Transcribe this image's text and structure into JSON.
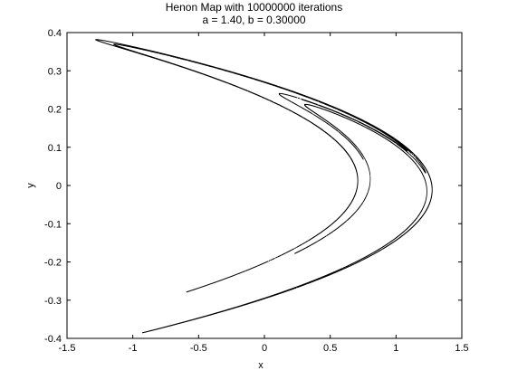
{
  "chart_data": {
    "type": "scatter",
    "title": "Henon Map with 10000000 iterations",
    "subtitle": "a = 1.40, b = 0.30000",
    "xlabel": "x",
    "ylabel": "y",
    "xlim": [
      -1.5,
      1.5
    ],
    "ylim": [
      -0.4,
      0.4
    ],
    "xticks": [
      "-1.5",
      "-1",
      "-0.5",
      "0",
      "0.5",
      "1",
      "1.5"
    ],
    "yticks": [
      "-0.4",
      "-0.3",
      "-0.2",
      "-0.1",
      "0",
      "0.1",
      "0.2",
      "0.3",
      "0.4"
    ],
    "params": {
      "a": 1.4,
      "b": 0.3
    },
    "iterations": 10000000,
    "grid": false,
    "point_color": "#000000"
  }
}
